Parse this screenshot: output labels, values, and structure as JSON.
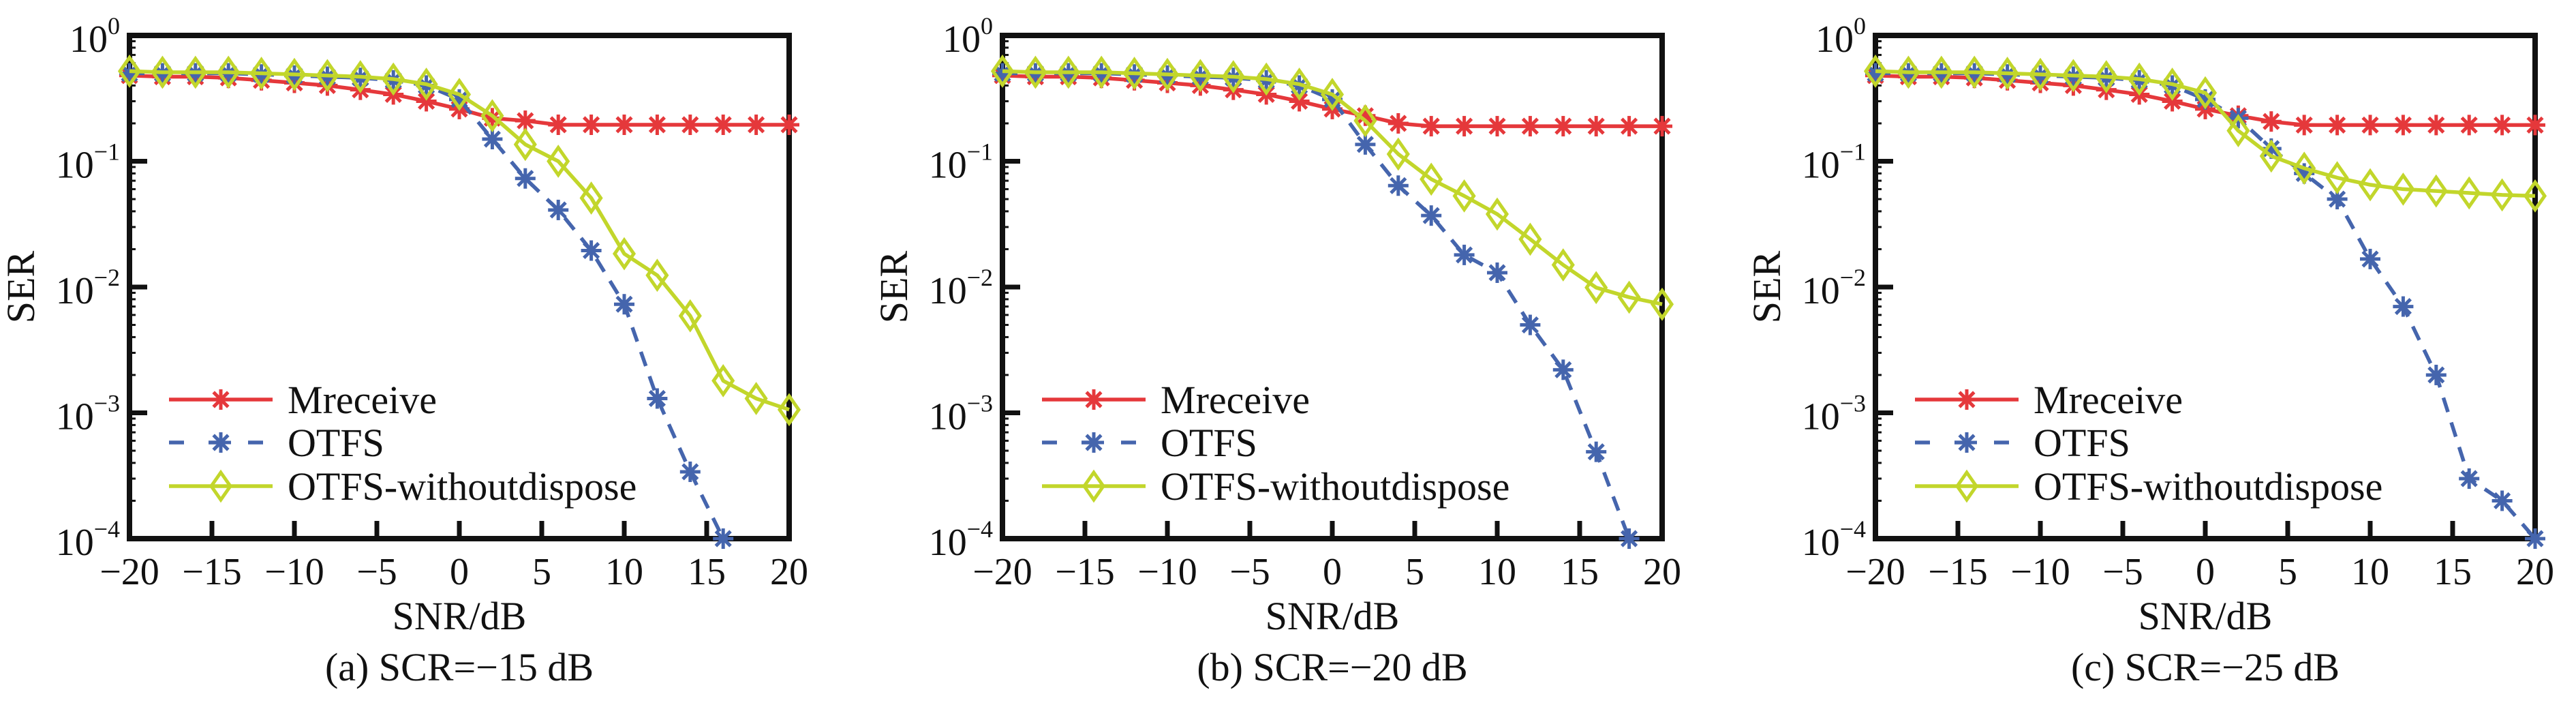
{
  "figure": {
    "subplot_count": 3
  },
  "legend_labels": [
    "Mreceive",
    "OTFS",
    "OTFS-withoutdispose"
  ],
  "colors": {
    "Mreceive": "#E5383B",
    "OTFS": "#4565AD",
    "OTFS-withoutdispose": "#C2D62B",
    "axis": "#111111"
  },
  "chart_data": [
    {
      "type": "line",
      "caption": "(a) SCR=−15 dB",
      "xlabel": "SNR/dB",
      "ylabel": "SER",
      "xlim": [
        -20,
        20
      ],
      "ylim": [
        0.0001,
        1
      ],
      "yscale": "log",
      "xticks": [
        -20,
        -15,
        -10,
        -5,
        0,
        5,
        10,
        15,
        20
      ],
      "xtick_labels": [
        "−20",
        "−15",
        "−10",
        "−5",
        "0",
        "5",
        "10",
        "15",
        "20"
      ],
      "yticks": [
        1,
        0.1,
        0.01,
        0.001,
        0.0001
      ],
      "ytick_labels": [
        [
          "10",
          "0"
        ],
        [
          "10",
          "−1"
        ],
        [
          "10",
          "−2"
        ],
        [
          "10",
          "−3"
        ],
        [
          "10",
          "−4"
        ]
      ],
      "grid": false,
      "legend_position": "bottom-left",
      "x": [
        -20,
        -18,
        -16,
        -14,
        -12,
        -10,
        -8,
        -6,
        -4,
        -2,
        0,
        2,
        4,
        6,
        8,
        10,
        12,
        14,
        16,
        18,
        20
      ],
      "series": [
        {
          "name": "Mreceive",
          "style": "solid",
          "marker": "asterisk",
          "values": [
            0.48,
            0.47,
            0.47,
            0.46,
            0.44,
            0.42,
            0.4,
            0.37,
            0.34,
            0.3,
            0.26,
            0.22,
            0.21,
            0.195,
            0.195,
            0.195,
            0.195,
            0.195,
            0.195,
            0.195,
            0.195
          ]
        },
        {
          "name": "OTFS",
          "style": "dashed",
          "marker": "asterisk",
          "values": [
            0.5,
            0.5,
            0.5,
            0.5,
            0.49,
            0.48,
            0.47,
            0.46,
            0.44,
            0.4,
            0.31,
            0.15,
            0.073,
            0.041,
            0.0195,
            0.0073,
            0.0013,
            0.00034,
            0.0001
          ]
        },
        {
          "name": "OTFS-withoutdispose",
          "style": "solid",
          "marker": "diamond",
          "values": [
            0.52,
            0.51,
            0.51,
            0.51,
            0.5,
            0.49,
            0.48,
            0.47,
            0.45,
            0.41,
            0.34,
            0.23,
            0.136,
            0.1,
            0.051,
            0.0184,
            0.0124,
            0.0059,
            0.0018,
            0.0013,
            0.00106
          ]
        }
      ]
    },
    {
      "type": "line",
      "caption": "(b) SCR=−20 dB",
      "xlabel": "SNR/dB",
      "ylabel": "SER",
      "xlim": [
        -20,
        20
      ],
      "ylim": [
        0.0001,
        1
      ],
      "yscale": "log",
      "xticks": [
        -20,
        -15,
        -10,
        -5,
        0,
        5,
        10,
        15,
        20
      ],
      "xtick_labels": [
        "−20",
        "−15",
        "−10",
        "−5",
        "0",
        "5",
        "10",
        "15",
        "20"
      ],
      "yticks": [
        1,
        0.1,
        0.01,
        0.001,
        0.0001
      ],
      "ytick_labels": [
        [
          "10",
          "0"
        ],
        [
          "10",
          "−1"
        ],
        [
          "10",
          "−2"
        ],
        [
          "10",
          "−3"
        ],
        [
          "10",
          "−4"
        ]
      ],
      "grid": false,
      "legend_position": "bottom-left",
      "x": [
        -20,
        -18,
        -16,
        -14,
        -12,
        -10,
        -8,
        -6,
        -4,
        -2,
        0,
        2,
        4,
        6,
        8,
        10,
        12,
        14,
        16,
        18,
        20
      ],
      "series": [
        {
          "name": "Mreceive",
          "style": "solid",
          "marker": "asterisk",
          "values": [
            0.48,
            0.47,
            0.47,
            0.46,
            0.44,
            0.42,
            0.4,
            0.37,
            0.34,
            0.3,
            0.26,
            0.23,
            0.2,
            0.19,
            0.19,
            0.19,
            0.19,
            0.19,
            0.19,
            0.19,
            0.19
          ]
        },
        {
          "name": "OTFS",
          "style": "dashed",
          "marker": "asterisk",
          "values": [
            0.5,
            0.5,
            0.5,
            0.5,
            0.49,
            0.48,
            0.47,
            0.46,
            0.44,
            0.4,
            0.31,
            0.136,
            0.064,
            0.037,
            0.018,
            0.013,
            0.005,
            0.0022,
            0.00049,
            0.0001
          ]
        },
        {
          "name": "OTFS-withoutdispose",
          "style": "solid",
          "marker": "diamond",
          "values": [
            0.52,
            0.51,
            0.51,
            0.51,
            0.5,
            0.49,
            0.48,
            0.47,
            0.45,
            0.41,
            0.34,
            0.21,
            0.114,
            0.072,
            0.053,
            0.038,
            0.024,
            0.015,
            0.0099,
            0.0083,
            0.0073
          ]
        }
      ]
    },
    {
      "type": "line",
      "caption": "(c) SCR=−25 dB",
      "xlabel": "SNR/dB",
      "ylabel": "SER",
      "xlim": [
        -20,
        20
      ],
      "ylim": [
        0.0001,
        1
      ],
      "yscale": "log",
      "xticks": [
        -20,
        -15,
        -10,
        -5,
        0,
        5,
        10,
        15,
        20
      ],
      "xtick_labels": [
        "−20",
        "−15",
        "−10",
        "−5",
        "0",
        "5",
        "10",
        "15",
        "20"
      ],
      "yticks": [
        1,
        0.1,
        0.01,
        0.001,
        0.0001
      ],
      "ytick_labels": [
        [
          "10",
          "0"
        ],
        [
          "10",
          "−1"
        ],
        [
          "10",
          "−2"
        ],
        [
          "10",
          "−3"
        ],
        [
          "10",
          "−4"
        ]
      ],
      "grid": false,
      "legend_position": "bottom-left",
      "x": [
        -20,
        -18,
        -16,
        -14,
        -12,
        -10,
        -8,
        -6,
        -4,
        -2,
        0,
        2,
        4,
        6,
        8,
        10,
        12,
        14,
        16,
        18,
        20
      ],
      "series": [
        {
          "name": "Mreceive",
          "style": "solid",
          "marker": "asterisk",
          "values": [
            0.48,
            0.47,
            0.47,
            0.46,
            0.44,
            0.42,
            0.4,
            0.37,
            0.34,
            0.3,
            0.26,
            0.23,
            0.207,
            0.194,
            0.194,
            0.194,
            0.194,
            0.194,
            0.194,
            0.194,
            0.194
          ]
        },
        {
          "name": "OTFS",
          "style": "dashed",
          "marker": "asterisk",
          "values": [
            0.5,
            0.5,
            0.5,
            0.5,
            0.49,
            0.48,
            0.47,
            0.46,
            0.44,
            0.4,
            0.31,
            0.22,
            0.126,
            0.08,
            0.05,
            0.0167,
            0.007,
            0.002,
            0.0003,
            0.0002,
            0.0001
          ]
        },
        {
          "name": "OTFS-withoutdispose",
          "style": "solid",
          "marker": "diamond",
          "values": [
            0.52,
            0.51,
            0.51,
            0.51,
            0.5,
            0.49,
            0.48,
            0.47,
            0.45,
            0.41,
            0.35,
            0.175,
            0.11,
            0.088,
            0.074,
            0.065,
            0.06,
            0.058,
            0.056,
            0.054,
            0.053
          ]
        }
      ]
    }
  ]
}
